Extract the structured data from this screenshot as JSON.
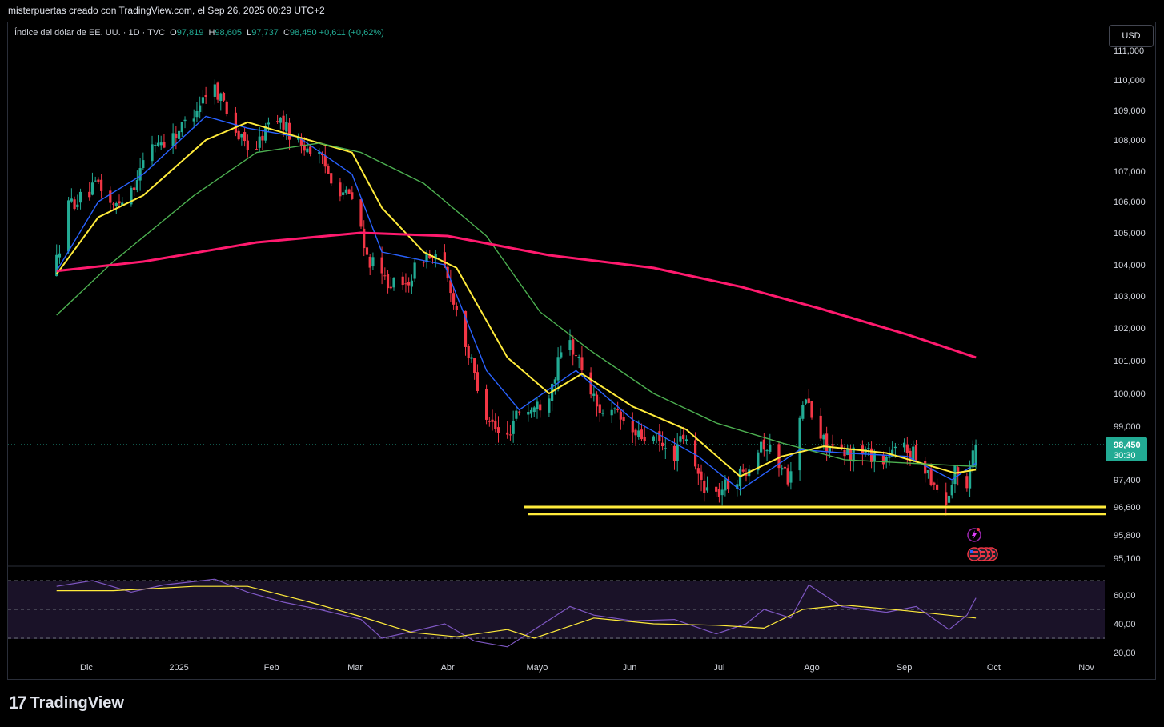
{
  "caption": "misterpuertas creado con TradingView.com, el Sep 26, 2025 00:29 UTC+2",
  "legend": {
    "symbol": "Índice del dólar de EE. UU. · 1D · TVC",
    "open_label": "O",
    "open": "97,819",
    "high_label": "H",
    "high": "98,605",
    "low_label": "L",
    "low": "97,737",
    "close_label": "C",
    "close": "98,450",
    "change": "+0,611 (+0,62%)"
  },
  "currency_button": "USD",
  "last_price": {
    "value": "98,450",
    "countdown": "30:30"
  },
  "footer": {
    "logo_mark": "17",
    "logo_text": "TradingView"
  },
  "colors": {
    "up": "#22ab94",
    "down": "#f23645",
    "ma_fast": "#2962ff",
    "ma_mid": "#ffeb3b",
    "ma_slow": "#4caf50",
    "ma_long": "#ff1a6e",
    "rsi": "#7e57c2",
    "support": "#ffeb3b",
    "rsi_band": "#1a1228"
  },
  "chart_data": [
    {
      "type": "candlestick",
      "title": "Índice del dólar de EE. UU. · 1D · TVC",
      "yaxis_ticks": [
        "111,000",
        "110,000",
        "109,000",
        "108,000",
        "107,000",
        "106,000",
        "105,000",
        "104,000",
        "103,000",
        "102,000",
        "101,000",
        "100,000",
        "99,000",
        "97,400",
        "96,600",
        "95,800",
        "95,100"
      ],
      "xaxis_ticks": [
        "Dic",
        "2025",
        "Feb",
        "Mar",
        "Abr",
        "Mayo",
        "Jun",
        "Jul",
        "Ago",
        "Sep",
        "Oct",
        "Nov"
      ],
      "ylim": [
        95.1,
        111.0
      ],
      "price_path": [
        [
          "2024-11-21",
          103.7
        ],
        [
          "2024-11-26",
          105.9
        ],
        [
          "2024-12-02",
          106.2
        ],
        [
          "2024-12-06",
          106.6
        ],
        [
          "2024-12-11",
          105.8
        ],
        [
          "2024-12-18",
          106.6
        ],
        [
          "2024-12-24",
          107.9
        ],
        [
          "2024-12-30",
          108.0
        ],
        [
          "2025-01-06",
          108.8
        ],
        [
          "2025-01-13",
          109.9
        ],
        [
          "2025-01-17",
          109.3
        ],
        [
          "2025-01-22",
          108.1
        ],
        [
          "2025-01-27",
          107.6
        ],
        [
          "2025-02-03",
          108.9
        ],
        [
          "2025-02-10",
          108.0
        ],
        [
          "2025-02-17",
          107.6
        ],
        [
          "2025-02-24",
          106.5
        ],
        [
          "2025-03-03",
          105.9
        ],
        [
          "2025-03-05",
          104.4
        ],
        [
          "2025-03-11",
          103.6
        ],
        [
          "2025-03-18",
          103.2
        ],
        [
          "2025-03-25",
          104.3
        ],
        [
          "2025-03-31",
          104.1
        ],
        [
          "2025-04-04",
          102.9
        ],
        [
          "2025-04-09",
          101.2
        ],
        [
          "2025-04-14",
          99.6
        ],
        [
          "2025-04-21",
          98.4
        ],
        [
          "2025-04-25",
          99.5
        ],
        [
          "2025-04-30",
          99.5
        ],
        [
          "2025-05-05",
          99.8
        ],
        [
          "2025-05-12",
          101.7
        ],
        [
          "2025-05-16",
          101.0
        ],
        [
          "2025-05-22",
          99.6
        ],
        [
          "2025-05-29",
          99.3
        ],
        [
          "2025-06-04",
          98.7
        ],
        [
          "2025-06-11",
          98.6
        ],
        [
          "2025-06-16",
          98.0
        ],
        [
          "2025-06-20",
          98.7
        ],
        [
          "2025-06-25",
          97.5
        ],
        [
          "2025-06-30",
          96.9
        ],
        [
          "2025-07-04",
          97.2
        ],
        [
          "2025-07-10",
          97.6
        ],
        [
          "2025-07-16",
          98.6
        ],
        [
          "2025-07-22",
          97.9
        ],
        [
          "2025-07-25",
          97.5
        ],
        [
          "2025-07-31",
          99.9
        ],
        [
          "2025-08-04",
          98.7
        ],
        [
          "2025-08-12",
          98.1
        ],
        [
          "2025-08-19",
          98.3
        ],
        [
          "2025-08-26",
          98.0
        ],
        [
          "2025-09-02",
          98.4
        ],
        [
          "2025-09-09",
          97.8
        ],
        [
          "2025-09-16",
          96.7
        ],
        [
          "2025-09-19",
          97.6
        ],
        [
          "2025-09-23",
          97.3
        ],
        [
          "2025-09-25",
          98.45
        ]
      ],
      "last": {
        "open": 97.819,
        "high": 98.605,
        "low": 97.737,
        "close": 98.45
      },
      "series": [
        {
          "color": "#2962ff",
          "values": [
            [
              "2024-11-21",
              103.8
            ],
            [
              "2024-12-05",
              106.0
            ],
            [
              "2024-12-20",
              106.9
            ],
            [
              "2025-01-10",
              108.8
            ],
            [
              "2025-01-24",
              108.4
            ],
            [
              "2025-02-10",
              108.1
            ],
            [
              "2025-02-28",
              106.9
            ],
            [
              "2025-03-10",
              104.4
            ],
            [
              "2025-03-31",
              104.0
            ],
            [
              "2025-04-14",
              100.7
            ],
            [
              "2025-04-25",
              99.5
            ],
            [
              "2025-05-14",
              100.7
            ],
            [
              "2025-06-02",
              99.2
            ],
            [
              "2025-06-24",
              98.1
            ],
            [
              "2025-07-08",
              97.1
            ],
            [
              "2025-07-28",
              98.3
            ],
            [
              "2025-08-12",
              98.2
            ],
            [
              "2025-09-02",
              98.1
            ],
            [
              "2025-09-17",
              97.4
            ],
            [
              "2025-09-25",
              97.9
            ]
          ]
        },
        {
          "color": "#ffeb3b",
          "values": [
            [
              "2024-11-21",
              103.7
            ],
            [
              "2024-12-05",
              105.5
            ],
            [
              "2024-12-20",
              106.2
            ],
            [
              "2025-01-10",
              108.0
            ],
            [
              "2025-01-24",
              108.6
            ],
            [
              "2025-02-10",
              108.1
            ],
            [
              "2025-02-28",
              107.6
            ],
            [
              "2025-03-10",
              105.8
            ],
            [
              "2025-03-24",
              104.4
            ],
            [
              "2025-04-04",
              103.9
            ],
            [
              "2025-04-21",
              101.1
            ],
            [
              "2025-05-05",
              100.0
            ],
            [
              "2025-05-16",
              100.6
            ],
            [
              "2025-06-02",
              99.6
            ],
            [
              "2025-06-20",
              98.9
            ],
            [
              "2025-07-08",
              97.5
            ],
            [
              "2025-07-22",
              98.1
            ],
            [
              "2025-08-05",
              98.4
            ],
            [
              "2025-08-26",
              98.2
            ],
            [
              "2025-09-18",
              97.6
            ],
            [
              "2025-09-25",
              97.7
            ]
          ]
        },
        {
          "color": "#4caf50",
          "values": [
            [
              "2024-11-21",
              102.4
            ],
            [
              "2024-12-10",
              104.1
            ],
            [
              "2025-01-06",
              106.2
            ],
            [
              "2025-01-27",
              107.6
            ],
            [
              "2025-02-17",
              107.9
            ],
            [
              "2025-03-03",
              107.6
            ],
            [
              "2025-03-24",
              106.6
            ],
            [
              "2025-04-14",
              104.9
            ],
            [
              "2025-05-02",
              102.5
            ],
            [
              "2025-05-19",
              101.3
            ],
            [
              "2025-06-09",
              100.0
            ],
            [
              "2025-06-30",
              99.1
            ],
            [
              "2025-07-22",
              98.5
            ],
            [
              "2025-08-12",
              98.0
            ],
            [
              "2025-09-02",
              97.9
            ],
            [
              "2025-09-25",
              97.8
            ]
          ]
        },
        {
          "color": "#ff1a6e",
          "values": [
            [
              "2024-11-21",
              103.8
            ],
            [
              "2024-12-20",
              104.1
            ],
            [
              "2025-01-27",
              104.7
            ],
            [
              "2025-03-03",
              105.0
            ],
            [
              "2025-04-01",
              104.9
            ],
            [
              "2025-05-05",
              104.3
            ],
            [
              "2025-06-09",
              103.9
            ],
            [
              "2025-07-08",
              103.3
            ],
            [
              "2025-08-04",
              102.6
            ],
            [
              "2025-09-02",
              101.8
            ],
            [
              "2025-09-25",
              101.1
            ]
          ]
        }
      ],
      "support_lines": [
        96.6,
        96.4
      ]
    },
    {
      "type": "line",
      "title": "RSI",
      "yaxis_ticks": [
        "60,00",
        "40,00",
        "20,00"
      ],
      "ylim": [
        17,
        76
      ],
      "bands": [
        70,
        50,
        30
      ],
      "series": [
        {
          "color": "#7e57c2",
          "values": [
            [
              "2024-11-21",
              66
            ],
            [
              "2024-12-03",
              70
            ],
            [
              "2024-12-16",
              62
            ],
            [
              "2024-12-27",
              67
            ],
            [
              "2025-01-13",
              71
            ],
            [
              "2025-01-24",
              62
            ],
            [
              "2025-02-05",
              55
            ],
            [
              "2025-02-17",
              50
            ],
            [
              "2025-03-03",
              43
            ],
            [
              "2025-03-10",
              30
            ],
            [
              "2025-03-21",
              35
            ],
            [
              "2025-03-31",
              40
            ],
            [
              "2025-04-10",
              28
            ],
            [
              "2025-04-21",
              24
            ],
            [
              "2025-04-30",
              36
            ],
            [
              "2025-05-12",
              52
            ],
            [
              "2025-05-20",
              46
            ],
            [
              "2025-06-02",
              42
            ],
            [
              "2025-06-16",
              43
            ],
            [
              "2025-06-30",
              33
            ],
            [
              "2025-07-10",
              40
            ],
            [
              "2025-07-16",
              50
            ],
            [
              "2025-07-25",
              44
            ],
            [
              "2025-07-31",
              67
            ],
            [
              "2025-08-11",
              52
            ],
            [
              "2025-08-26",
              48
            ],
            [
              "2025-09-05",
              52
            ],
            [
              "2025-09-16",
              36
            ],
            [
              "2025-09-22",
              46
            ],
            [
              "2025-09-25",
              58
            ]
          ]
        },
        {
          "color": "#ffeb3b",
          "values": [
            [
              "2024-11-21",
              63
            ],
            [
              "2024-12-10",
              63
            ],
            [
              "2025-01-06",
              66
            ],
            [
              "2025-01-24",
              66
            ],
            [
              "2025-02-14",
              55
            ],
            [
              "2025-03-03",
              45
            ],
            [
              "2025-03-20",
              34
            ],
            [
              "2025-04-04",
              31
            ],
            [
              "2025-04-21",
              36
            ],
            [
              "2025-04-30",
              30
            ],
            [
              "2025-05-20",
              44
            ],
            [
              "2025-06-09",
              40
            ],
            [
              "2025-06-30",
              39
            ],
            [
              "2025-07-16",
              37
            ],
            [
              "2025-07-29",
              50
            ],
            [
              "2025-08-12",
              53
            ],
            [
              "2025-09-02",
              49
            ],
            [
              "2025-09-25",
              44
            ]
          ]
        }
      ]
    }
  ]
}
